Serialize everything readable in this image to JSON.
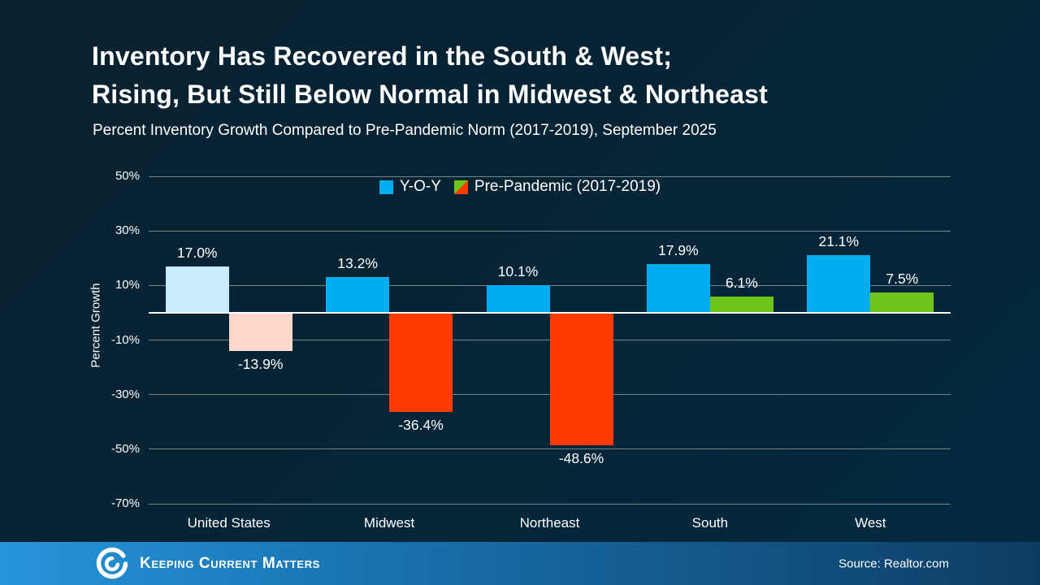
{
  "slide": {
    "title_line1": "Inventory Has Recovered in the South & West;",
    "title_line2": "Rising, But Still Below Normal in Midwest & Northeast",
    "subtitle": "Percent Inventory Growth Compared to Pre-Pandemic Norm (2017-2019), September 2025"
  },
  "chart_data": {
    "type": "bar",
    "title": "Inventory Has Recovered in the South & West; Rising, But Still Below Normal in Midwest & Northeast",
    "subtitle": "Percent Inventory Growth Compared to Pre-Pandemic Norm (2017-2019), September 2025",
    "categories": [
      "United States",
      "Midwest",
      "Northeast",
      "South",
      "West"
    ],
    "series": [
      {
        "name": "Y-O-Y",
        "values": [
          17.0,
          13.2,
          10.1,
          17.9,
          21.1
        ],
        "labels": [
          "17.0%",
          "13.2%",
          "10.1%",
          "17.9%",
          "21.1%"
        ],
        "bar_colors": [
          "#c9ecfc",
          "#00aeef",
          "#00aeef",
          "#00aeef",
          "#00aeef"
        ]
      },
      {
        "name": "Pre-Pandemic (2017-2019)",
        "values": [
          -13.9,
          -36.4,
          -48.6,
          6.1,
          7.5
        ],
        "labels": [
          "-13.9%",
          "-36.4%",
          "-48.6%",
          "6.1%",
          "7.5%"
        ],
        "bar_colors": [
          "#ffd8cb",
          "#ff3b00",
          "#ff3b00",
          "#6fc41c",
          "#6fc41c"
        ]
      }
    ],
    "ylabel": "Percent Growth",
    "xlabel": "",
    "ylim": [
      -70,
      50
    ],
    "yticks": [
      50,
      30,
      10,
      -10,
      -30,
      -50,
      -70
    ],
    "ytick_labels": [
      "50%",
      "30%",
      "10%",
      "-10%",
      "-30%",
      "-50%",
      "-70%"
    ],
    "grid": true,
    "legend_position": "top-center",
    "legend": [
      {
        "label": "Y-O-Y",
        "swatch": "#00aeef"
      },
      {
        "label": "Pre-Pandemic (2017-2019)",
        "swatch_positive": "#6fc41c",
        "swatch_negative": "#ff3b00"
      }
    ]
  },
  "footer": {
    "brand": "Keeping Current Matters",
    "source": "Source: Realtor.com"
  },
  "theme": {
    "background_top_left": "#0a2231",
    "background_bottom_right": "#032940",
    "text": "#ffffff",
    "gridline": "#8a969b",
    "zero_line": "#ffffff",
    "footer_gradient_left": "#2794da",
    "footer_gradient_right": "#0d3c62"
  }
}
